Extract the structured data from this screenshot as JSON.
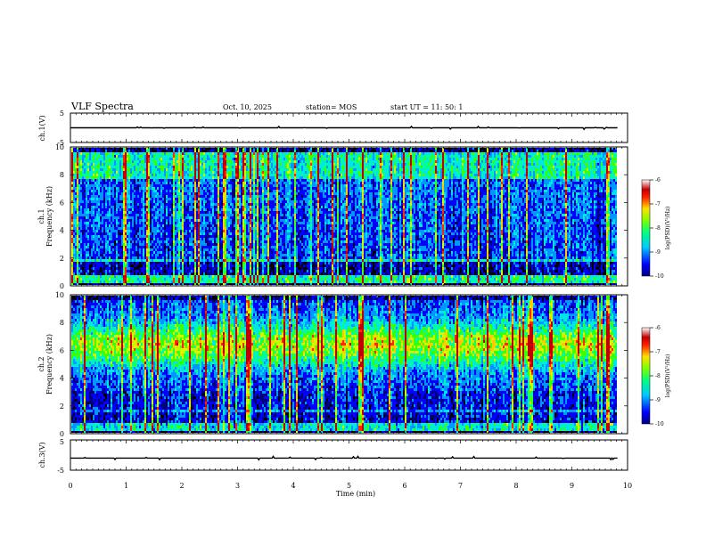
{
  "header": {
    "title": "VLF Spectra",
    "date": "Oct. 10, 2025",
    "station": "station= MOS",
    "start": "start  UT =   11: 50: 1"
  },
  "chart_data": [
    {
      "type": "line",
      "panel": "ch1-waveform",
      "ylabel": "ch.1(V)",
      "ylim": [
        -5,
        5
      ],
      "yticks": [
        "5",
        "-5"
      ],
      "xlim": [
        0,
        10
      ],
      "level": 0
    },
    {
      "type": "heatmap",
      "panel": "ch1-spectrogram",
      "ylabel_line1": "ch.1",
      "ylabel_line2": "Frequency (kHz)",
      "ylim": [
        0,
        10
      ],
      "yticks": [
        "0",
        "2",
        "4",
        "6",
        "8",
        "10"
      ],
      "xlim": [
        0,
        10
      ],
      "data_end_min": 9.82,
      "colorbar": {
        "label": "log(PSD)(V²/Hz)",
        "range": [
          -10,
          -6
        ],
        "ticks": [
          "-6",
          "-7",
          "-8",
          "-9",
          "-10"
        ]
      }
    },
    {
      "type": "heatmap",
      "panel": "ch2-spectrogram",
      "ylabel_line1": "ch.2",
      "ylabel_line2": "Frequency (kHz)",
      "ylim": [
        0,
        10
      ],
      "yticks": [
        "0",
        "2",
        "4",
        "6",
        "8",
        "10"
      ],
      "xlim": [
        0,
        10
      ],
      "data_end_min": 9.82,
      "colorbar": {
        "label": "log(PSD)(V²/Hz)",
        "range": [
          -10,
          -6
        ],
        "ticks": [
          "-6",
          "-7",
          "-8",
          "-9",
          "-10"
        ]
      }
    },
    {
      "type": "line",
      "panel": "ch3-waveform",
      "ylabel": "ch.3(V)",
      "ylim": [
        -5,
        5
      ],
      "yticks": [
        "5",
        "-5"
      ],
      "xlim": [
        0,
        10
      ],
      "level": -1
    }
  ],
  "xaxis": {
    "label": "Time  (min)",
    "ticks": [
      "0",
      "1",
      "2",
      "3",
      "4",
      "5",
      "6",
      "7",
      "8",
      "9",
      "10"
    ]
  },
  "colors": {
    "colormap": [
      "#0000a0",
      "#0000ff",
      "#00b4ff",
      "#00ffb4",
      "#3cff00",
      "#c8ff00",
      "#ffcc00",
      "#ff3000",
      "#c00000",
      "#ffffff"
    ]
  }
}
